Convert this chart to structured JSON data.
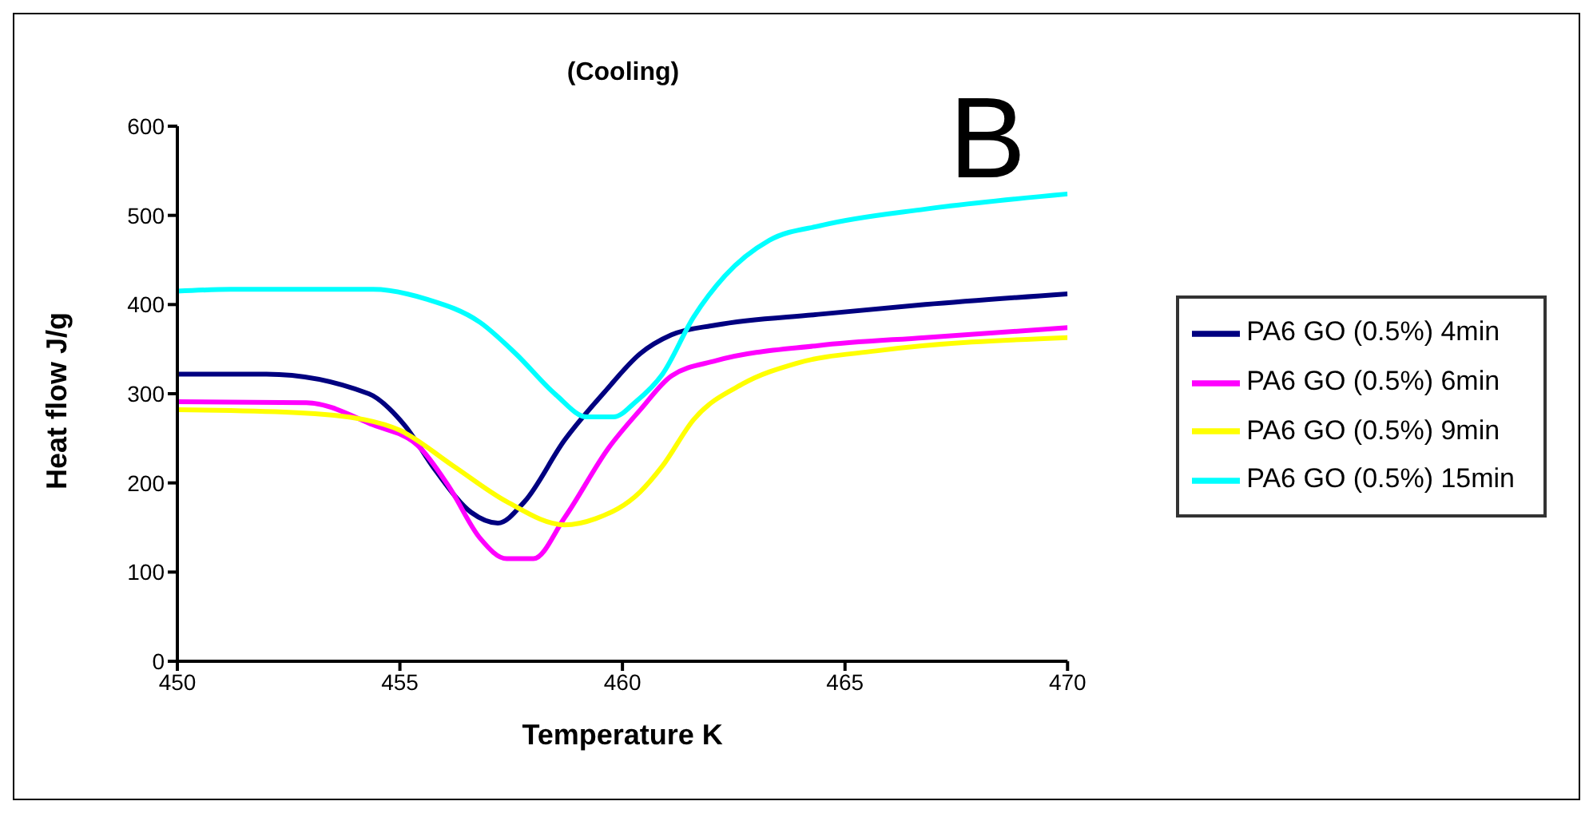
{
  "chart_data": {
    "type": "line",
    "title": "(Cooling)",
    "xlabel": "Temperature K",
    "ylabel": "Heat flow J/g",
    "annotations": [
      "B"
    ],
    "xlim": [
      450,
      470
    ],
    "xticks": [
      450,
      455,
      460,
      465,
      470
    ],
    "ylim": [
      0,
      600
    ],
    "yticks": [
      0,
      100,
      200,
      300,
      400,
      500,
      600
    ],
    "grid": false,
    "legend": "right",
    "marker": "none",
    "line_style": "solid",
    "series": [
      {
        "name": "PA6 GO (0.5%) 4min",
        "color": "#000080",
        "x": [
          450,
          452,
          454.3,
          455.1,
          455.8,
          456.6,
          457.2,
          457.8,
          458.7,
          459.6,
          460.4,
          461.1,
          462.1,
          464.4,
          466.8,
          470
        ],
        "values": [
          322,
          322,
          300,
          265,
          214,
          167,
          155,
          179,
          248,
          302,
          345,
          366,
          377,
          389,
          400,
          412
        ]
      },
      {
        "name": "PA6 GO (0.5%) 6min",
        "color": "#ff00ff",
        "x": [
          450,
          452.9,
          454.4,
          455.4,
          456.1,
          456.8,
          457.4,
          458,
          458.7,
          459.7,
          460.4,
          461.1,
          462.1,
          464.4,
          466.8,
          470
        ],
        "values": [
          291,
          290,
          265,
          242,
          196,
          138,
          115,
          115,
          161,
          240,
          282,
          320,
          337,
          354,
          363,
          374
        ]
      },
      {
        "name": "PA6 GO (0.5%) 9min",
        "color": "#ffff00",
        "x": [
          450,
          452.6,
          454.2,
          455,
          456.2,
          457.4,
          458.7,
          459.4,
          460.4,
          460.9,
          461.6,
          462.7,
          463.9,
          465.7,
          470
        ],
        "values": [
          282,
          279,
          271,
          259,
          219,
          179,
          153,
          160,
          190,
          219,
          271,
          311,
          334,
          348,
          363
        ]
      },
      {
        "name": "PA6 GO (0.5%) 15min",
        "color": "#00ffff",
        "x": [
          450,
          451.2,
          454.4,
          455.6,
          456.8,
          457.6,
          458.5,
          459.2,
          459.8,
          460.3,
          460.9,
          461.6,
          462.3,
          463.3,
          464.5,
          466.8,
          470
        ],
        "values": [
          415,
          417,
          417,
          406,
          380,
          345,
          299,
          274,
          274,
          291,
          322,
          386,
          432,
          472,
          489,
          507,
          524
        ]
      }
    ]
  }
}
